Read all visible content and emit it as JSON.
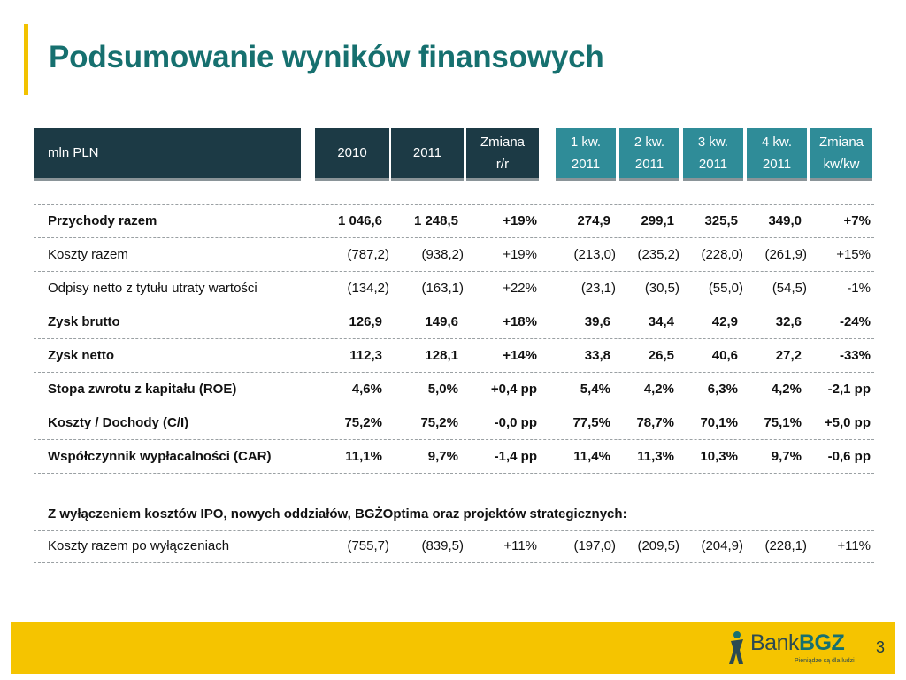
{
  "title": "Podsumowanie wyników finansowych",
  "header": {
    "unit": "mln PLN",
    "y2010": "2010",
    "y2011": "2011",
    "chg_yoy_1": "Zmiana",
    "chg_yoy_2": "r/r",
    "q1_1": "1 kw.",
    "q1_2": "2011",
    "q2_1": "2 kw.",
    "q2_2": "2011",
    "q3_1": "3 kw.",
    "q3_2": "2011",
    "q4_1": "4 kw.",
    "q4_2": "2011",
    "chg_qoq_1": "Zmiana",
    "chg_qoq_2": "kw/kw"
  },
  "rows": [
    {
      "label": "Przychody razem",
      "v2010": "1 046,6",
      "v2011": "1 248,5",
      "yoy": "+19%",
      "q1": "274,9",
      "q2": "299,1",
      "q3": "325,5",
      "q4": "349,0",
      "qoq": "+7%"
    },
    {
      "label": "Koszty razem",
      "v2010": "(787,2)",
      "v2011": "(938,2)",
      "yoy": "+19%",
      "q1": "(213,0)",
      "q2": "(235,2)",
      "q3": "(228,0)",
      "q4": "(261,9)",
      "qoq": "+15%"
    },
    {
      "label": "Odpisy netto z tytułu utraty wartości",
      "v2010": "(134,2)",
      "v2011": "(163,1)",
      "yoy": "+22%",
      "q1": "(23,1)",
      "q2": "(30,5)",
      "q3": "(55,0)",
      "q4": "(54,5)",
      "qoq": "-1%"
    },
    {
      "label": "Zysk brutto",
      "v2010": "126,9",
      "v2011": "149,6",
      "yoy": "+18%",
      "q1": "39,6",
      "q2": "34,4",
      "q3": "42,9",
      "q4": "32,6",
      "qoq": "-24%"
    },
    {
      "label": "Zysk netto",
      "v2010": "112,3",
      "v2011": "128,1",
      "yoy": "+14%",
      "q1": "33,8",
      "q2": "26,5",
      "q3": "40,6",
      "q4": "27,2",
      "qoq": "-33%"
    },
    {
      "label": "Stopa zwrotu z kapitału (ROE)",
      "v2010": "4,6%",
      "v2011": "5,0%",
      "yoy": "+0,4 pp",
      "q1": "5,4%",
      "q2": "4,2%",
      "q3": "6,3%",
      "q4": "4,2%",
      "qoq": "-2,1 pp"
    },
    {
      "label": "Koszty / Dochody (C/I)",
      "v2010": "75,2%",
      "v2011": "75,2%",
      "yoy": "-0,0 pp",
      "q1": "77,5%",
      "q2": "78,7%",
      "q3": "70,1%",
      "q4": "75,1%",
      "qoq": "+5,0 pp"
    },
    {
      "label": "Współczynnik wypłacalności (CAR)",
      "v2010": "11,1%",
      "v2011": "9,7%",
      "yoy": "-1,4 pp",
      "q1": "11,4%",
      "q2": "11,3%",
      "q3": "10,3%",
      "q4": "9,7%",
      "qoq": "-0,6 pp"
    }
  ],
  "exclusion": {
    "heading": "Z wyłączeniem kosztów IPO, nowych oddziałów, BGŻOptima oraz projektów strategicznych:",
    "row": {
      "label": "Koszty razem po wyłączeniach",
      "v2010": "(755,7)",
      "v2011": "(839,5)",
      "yoy": "+11%",
      "q1": "(197,0)",
      "q2": "(209,5)",
      "q3": "(204,9)",
      "q4": "(228,1)",
      "qoq": "+11%"
    }
  },
  "footer": {
    "logo_text_1": "Bank",
    "logo_text_2": "BGZ",
    "logo_tagline": "Pieniądze są dla ludzi",
    "page_number": "3"
  },
  "colors": {
    "title": "#16706f",
    "accent": "#f2c200",
    "header_dark": "#1c3a45",
    "header_teal": "#2f8c98",
    "footer": "#f5c400"
  }
}
